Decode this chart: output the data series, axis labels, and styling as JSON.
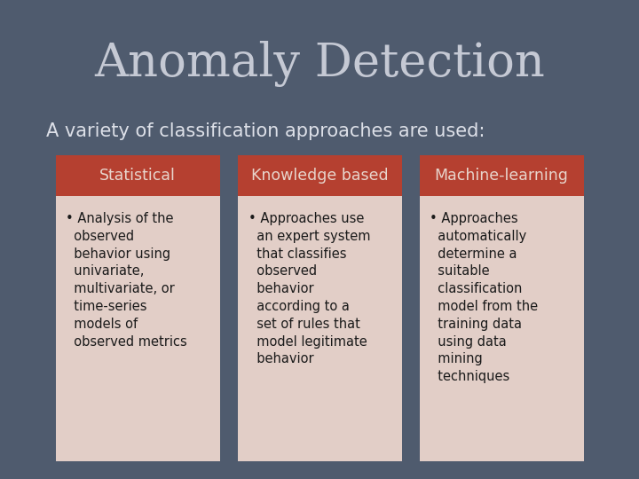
{
  "background_color": "#4f5b6e",
  "title": "Anomaly Detection",
  "title_color": "#c5c9d4",
  "subtitle": "A variety of classification approaches are used:",
  "subtitle_color": "#dde0e8",
  "title_fontsize": 38,
  "subtitle_fontsize": 15,
  "header_color": "#b54030",
  "card_bg_color": "#e2cec7",
  "header_text_color": "#e8d5cc",
  "body_text_color": "#1a1a1a",
  "header_fontsize": 12.5,
  "body_fontsize": 10.5,
  "columns": [
    {
      "header": "Statistical",
      "body_lines": [
        "• Analysis of the",
        "  observed",
        "  behavior using",
        "  univariate,",
        "  multivariate, or",
        "  time-series",
        "  models of",
        "  observed metrics"
      ]
    },
    {
      "header": "Knowledge based",
      "body_lines": [
        "• Approaches use",
        "  an expert system",
        "  that classifies",
        "  observed",
        "  behavior",
        "  according to a",
        "  set of rules that",
        "  model legitimate",
        "  behavior"
      ]
    },
    {
      "header": "Machine-learning",
      "body_lines": [
        "• Approaches",
        "  automatically",
        "  determine a",
        "  suitable",
        "  classification",
        "  model from the",
        "  training data",
        "  using data",
        "  mining",
        "  techniques"
      ]
    }
  ]
}
